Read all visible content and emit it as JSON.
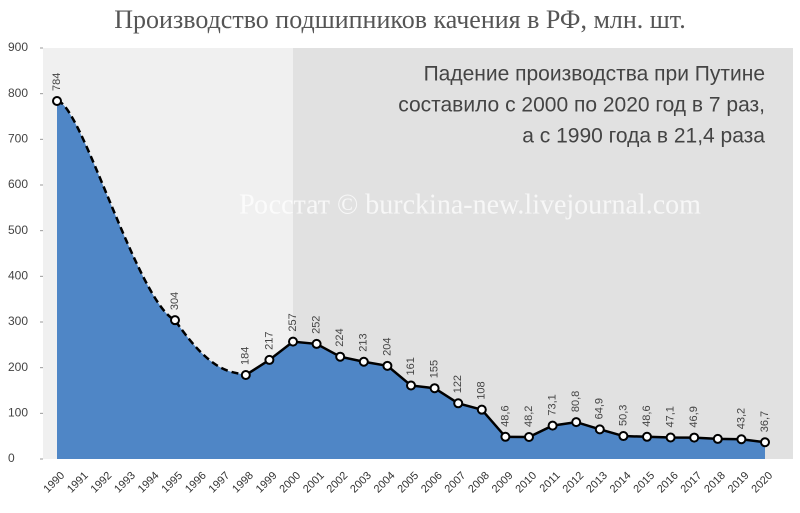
{
  "chart_data": {
    "type": "area",
    "title": "Производство подшипников качения в РФ, млн. шт.",
    "annotation": [
      "Падение производства при Путине",
      "составило с 2000 по 2020 год в 7 раз,",
      "а с 1990 года в 21,4 раза"
    ],
    "watermark": "Росстат © burckina-new.livejournal.com",
    "categories": [
      "1990",
      "1991",
      "1992",
      "1993",
      "1994",
      "1995",
      "1996",
      "1997",
      "1998",
      "1999",
      "2000",
      "2001",
      "2002",
      "2003",
      "2004",
      "2005",
      "2006",
      "2007",
      "2008",
      "2009",
      "2010",
      "2011",
      "2012",
      "2013",
      "2014",
      "2015",
      "2016",
      "2017",
      "2018",
      "2019",
      "2020"
    ],
    "values": [
      784,
      null,
      null,
      null,
      null,
      304,
      null,
      null,
      184,
      217,
      257,
      252,
      224,
      213,
      204,
      161,
      155,
      122,
      108,
      48.6,
      48.2,
      73.1,
      80.8,
      64.9,
      50.3,
      48.6,
      47.1,
      46.9,
      44,
      43.2,
      36.7
    ],
    "value_labels": [
      "784",
      null,
      null,
      null,
      null,
      "304",
      null,
      null,
      "184",
      "217",
      "257",
      "252",
      "224",
      "213",
      "204",
      "161",
      "155",
      "122",
      "108",
      "48,6",
      "48,2",
      "73,1",
      "80,8",
      "64,9",
      "50,3",
      "48,6",
      "47,1",
      "46,9",
      null,
      "43,2",
      "36,7"
    ],
    "color": "#4f86c6",
    "ylim": [
      0,
      900
    ],
    "yticks": [
      0,
      100,
      200,
      300,
      400,
      500,
      600,
      700,
      800,
      900
    ]
  }
}
